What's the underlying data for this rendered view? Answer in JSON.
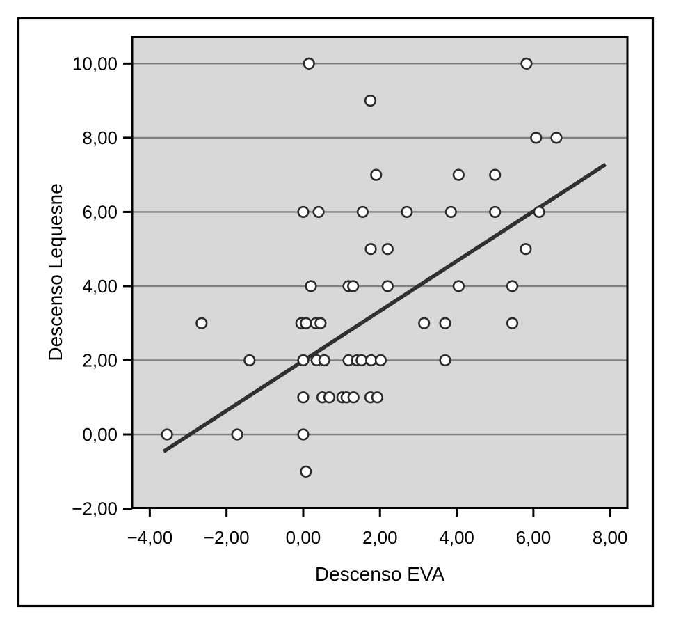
{
  "chart_data": {
    "type": "scatter",
    "xlabel": "Descenso EVA",
    "ylabel": "Descenso Lequesne",
    "xlim": [
      -4.46,
      8.45
    ],
    "ylim": [
      -1.98,
      10.72
    ],
    "x_ticks": [
      -4,
      -2,
      0,
      2,
      4,
      6,
      8
    ],
    "x_tick_labels": [
      "−4,00",
      "−2,00",
      "0,00",
      "2,00",
      "4,00",
      "6,00",
      "8,00"
    ],
    "y_ticks": [
      -2,
      0,
      2,
      4,
      6,
      8,
      10
    ],
    "y_tick_labels": [
      "−2,00",
      "0,00",
      "2,00",
      "4,00",
      "6,00",
      "8,00",
      "10,00"
    ],
    "gridline_ticks": [
      0,
      2,
      4,
      6,
      8,
      10
    ],
    "grid": "horizontal-only",
    "legend": "none",
    "marker": {
      "shape": "open-circle"
    },
    "points": [
      [
        0.15,
        10
      ],
      [
        5.82,
        10
      ],
      [
        1.75,
        9
      ],
      [
        6.07,
        8
      ],
      [
        6.6,
        8
      ],
      [
        1.9,
        7
      ],
      [
        4.05,
        7
      ],
      [
        5.0,
        7
      ],
      [
        0.0,
        6
      ],
      [
        0.4,
        6
      ],
      [
        1.55,
        6
      ],
      [
        2.7,
        6
      ],
      [
        3.85,
        6
      ],
      [
        5.0,
        6
      ],
      [
        6.15,
        6
      ],
      [
        1.76,
        5
      ],
      [
        2.2,
        5
      ],
      [
        5.8,
        5
      ],
      [
        0.2,
        4
      ],
      [
        1.18,
        4
      ],
      [
        1.3,
        4
      ],
      [
        2.2,
        4
      ],
      [
        4.05,
        4
      ],
      [
        5.45,
        4
      ],
      [
        -2.65,
        3
      ],
      [
        -0.05,
        3
      ],
      [
        0.07,
        3
      ],
      [
        0.33,
        3
      ],
      [
        0.45,
        3
      ],
      [
        3.15,
        3
      ],
      [
        3.7,
        3
      ],
      [
        5.45,
        3
      ],
      [
        -1.4,
        2
      ],
      [
        0.0,
        2
      ],
      [
        0.35,
        2
      ],
      [
        0.55,
        2
      ],
      [
        1.18,
        2
      ],
      [
        1.4,
        2
      ],
      [
        1.52,
        2
      ],
      [
        1.77,
        2
      ],
      [
        2.02,
        2
      ],
      [
        3.7,
        2
      ],
      [
        0.0,
        1
      ],
      [
        0.5,
        1
      ],
      [
        0.68,
        1
      ],
      [
        1.02,
        1
      ],
      [
        1.13,
        1
      ],
      [
        1.31,
        1
      ],
      [
        1.75,
        1
      ],
      [
        1.93,
        1
      ],
      [
        -3.55,
        0
      ],
      [
        -1.72,
        0
      ],
      [
        0.0,
        0
      ],
      [
        0.07,
        -1
      ]
    ],
    "fit_line": {
      "x1": -3.64,
      "y1": -0.46,
      "x2": 7.88,
      "y2": 7.28
    },
    "colors": {
      "plot_bg": "#d8d8d8",
      "gridline": "#7f7f7f",
      "marker_fill": "#ffffff",
      "marker_stroke": "#2b2b2b",
      "fit_line": "#303030",
      "border": "#000000",
      "page_bg": "#ffffff"
    }
  }
}
